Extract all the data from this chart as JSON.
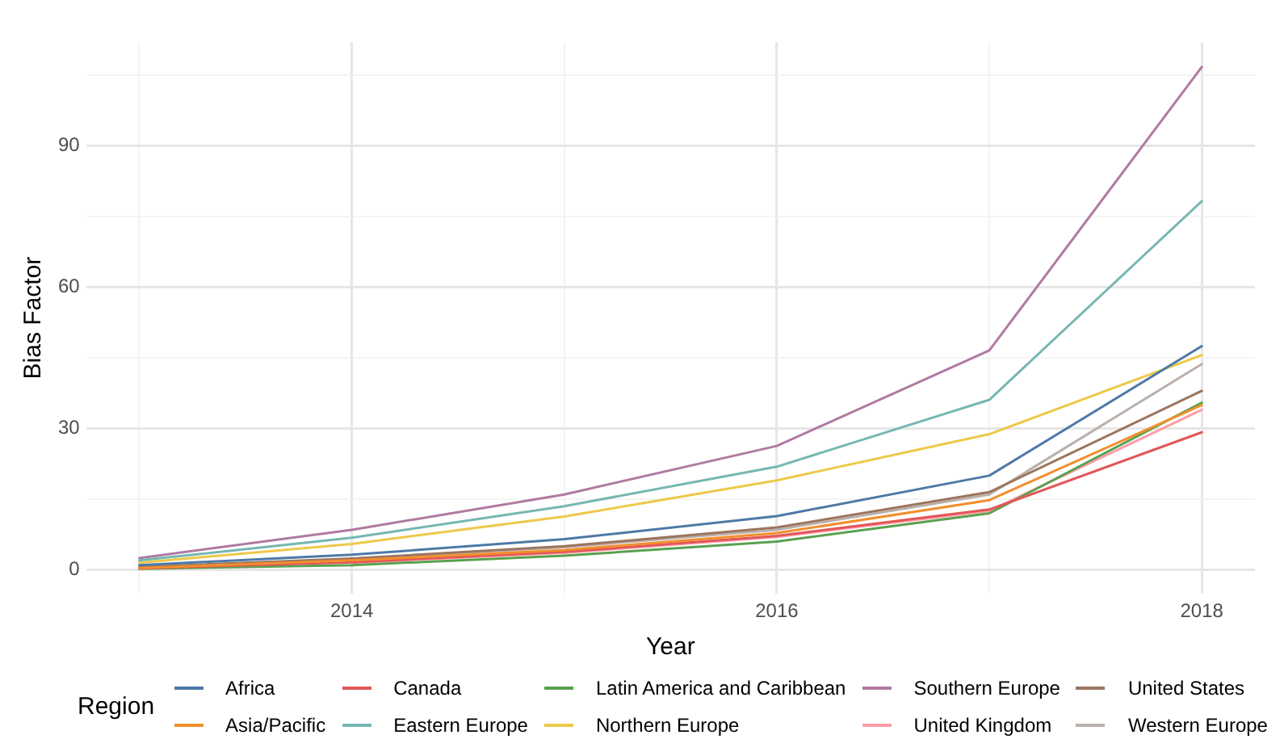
{
  "chart_data": {
    "type": "line",
    "xlabel": "Year",
    "ylabel": "Bias Factor",
    "legend_title": "Region",
    "legend": "bottom",
    "grid": true,
    "x": [
      2013,
      2014,
      2015,
      2016,
      2017,
      2018
    ],
    "xlim": [
      2012.75,
      2018.25
    ],
    "xticks": [
      {
        "value": 2013,
        "label": null
      },
      2014,
      {
        "value": 2015,
        "label": null
      },
      2016,
      {
        "value": 2017,
        "label": null
      },
      2018
    ],
    "ylim": [
      -5.1,
      112.1
    ],
    "yticks": [
      0,
      {
        "value": 15,
        "label": null
      },
      30,
      {
        "value": 45,
        "label": null
      },
      60,
      {
        "value": 75,
        "label": null
      },
      90,
      {
        "value": 105,
        "label": null
      }
    ],
    "series": [
      {
        "name": "Africa",
        "color": "#4e79a7",
        "values": [
          1,
          3.2,
          6.5,
          11.4,
          20,
          47.5
        ]
      },
      {
        "name": "Asia/Pacific",
        "color": "#f28e2b",
        "values": [
          0.4,
          2,
          4.2,
          7.8,
          14.8,
          35
        ]
      },
      {
        "name": "Canada",
        "color": "#e15759",
        "values": [
          0.3,
          1.6,
          3.8,
          7.2,
          12.8,
          29.2
        ]
      },
      {
        "name": "Eastern Europe",
        "color": "#76b7b2",
        "values": [
          2,
          6.8,
          13.5,
          21.9,
          36.1,
          78.3
        ]
      },
      {
        "name": "Latin America and Caribbean",
        "color": "#59a14f",
        "values": [
          0.2,
          1,
          3,
          6,
          12,
          35.5
        ]
      },
      {
        "name": "Northern Europe",
        "color": "#edc948",
        "values": [
          1.5,
          5.5,
          11.3,
          19,
          28.8,
          45.6
        ]
      },
      {
        "name": "Southern Europe",
        "color": "#b07aa1",
        "values": [
          2.5,
          8.5,
          16,
          26.3,
          46.6,
          106.8
        ]
      },
      {
        "name": "United Kingdom",
        "color": "#ff9da7",
        "values": [
          null,
          1.5,
          3.6,
          7,
          12.5,
          34
        ]
      },
      {
        "name": "United States",
        "color": "#9c755f",
        "values": [
          0.6,
          2.4,
          5,
          9,
          16.5,
          38
        ]
      },
      {
        "name": "Western Europe",
        "color": "#bab0ac",
        "values": [
          0.5,
          2.3,
          4.8,
          8.5,
          16,
          43.7
        ]
      }
    ]
  }
}
